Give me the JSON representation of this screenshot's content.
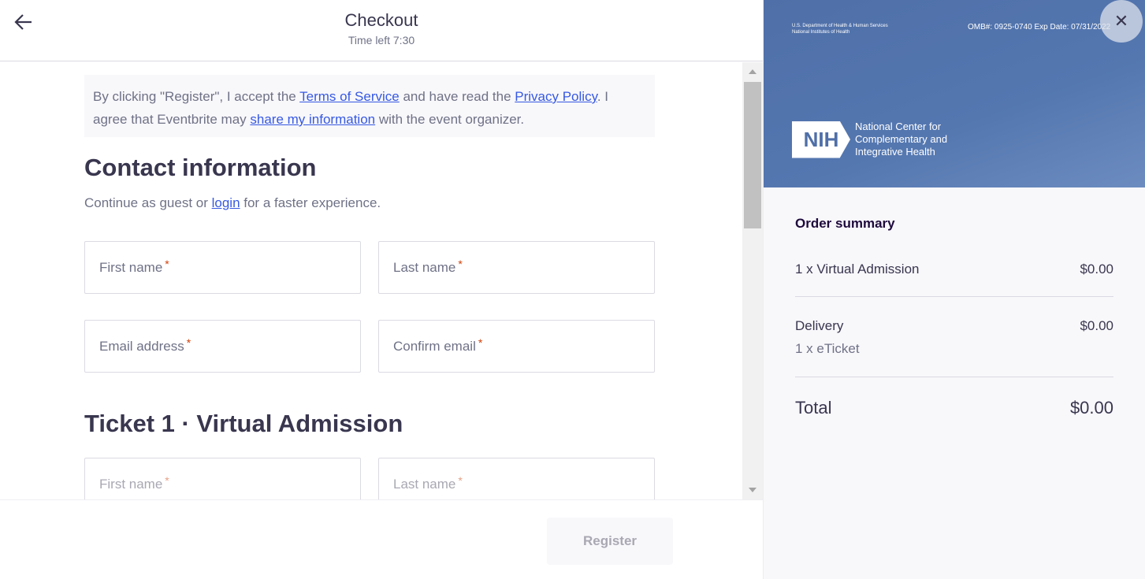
{
  "header": {
    "title": "Checkout",
    "time_left": "Time left 7:30",
    "back_icon": "arrow-left-icon"
  },
  "notice": {
    "part1": "By clicking \"Register\", I accept the ",
    "terms": "Terms of Service",
    "part2": " and have read the ",
    "privacy": "Privacy Policy",
    "part3": ". I agree that Eventbrite may ",
    "share": "share my information",
    "part4": " with the event organizer."
  },
  "contact": {
    "title": "Contact information",
    "sub1": "Continue as guest or ",
    "login": "login",
    "sub2": " for a faster experience.",
    "fields": {
      "first": "First name",
      "last": "Last name",
      "email": "Email address",
      "confirm": "Confirm email"
    }
  },
  "ticket": {
    "title": "Ticket 1 · Virtual Admission",
    "fields": {
      "first": "First name",
      "last": "Last name"
    }
  },
  "required_mark": "*",
  "footer": {
    "register": "Register"
  },
  "banner": {
    "dept1": "U.S. Department of Health & Human Services",
    "dept2": "National Institutes of Health",
    "omb": "OMB#: 0925-0740 Exp Date: 07/31/2022",
    "logo": "NIH",
    "org1": "National Center for",
    "org2": "Complementary and",
    "org3": "Integrative Health",
    "close_icon": "close-icon"
  },
  "summary": {
    "title": "Order summary",
    "items": [
      {
        "label": "1 x Virtual Admission",
        "price": "$0.00"
      }
    ],
    "delivery": {
      "label": "Delivery",
      "price": "$0.00",
      "detail": "1 x eTicket"
    },
    "total": {
      "label": "Total",
      "price": "$0.00"
    }
  },
  "colors": {
    "link": "#3659e3",
    "required": "#d1410c",
    "banner": "#5477b0"
  }
}
